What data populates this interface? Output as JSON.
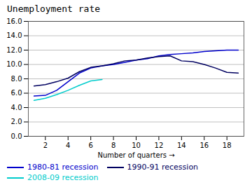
{
  "chart_data": {
    "type": "line",
    "title": "Unemployment rate",
    "xlabel": "Number of quarters",
    "x": [
      1,
      2,
      3,
      4,
      5,
      6,
      7,
      8,
      9,
      10,
      11,
      12,
      13,
      14,
      15,
      16,
      17,
      18,
      19
    ],
    "series": [
      {
        "name": "1980-81 recession",
        "color": "#0000cc",
        "values": [
          5.6,
          5.7,
          6.4,
          7.6,
          8.8,
          9.5,
          9.8,
          10.0,
          10.3,
          10.6,
          10.8,
          11.2,
          11.4,
          11.5,
          11.6,
          11.8,
          11.9,
          12.0,
          12.0
        ]
      },
      {
        "name": "1990-91 recession",
        "color": "#000060",
        "values": [
          7.0,
          7.2,
          7.6,
          8.1,
          9.0,
          9.6,
          9.8,
          10.1,
          10.5,
          10.6,
          10.9,
          11.1,
          11.2,
          10.5,
          10.4,
          10.0,
          9.5,
          8.9,
          8.8
        ]
      },
      {
        "name": "2008-09 recession",
        "color": "#00cccc",
        "values": [
          5.0,
          5.3,
          5.8,
          6.4,
          7.1,
          7.7,
          7.9,
          null,
          null,
          null,
          null,
          null,
          null,
          null,
          null,
          null,
          null,
          null,
          null
        ]
      }
    ],
    "xlim": [
      0.5,
      19.5
    ],
    "xticks": [
      2,
      4,
      6,
      8,
      10,
      12,
      14,
      16,
      18
    ],
    "ylim": [
      0,
      16.0
    ],
    "yticks": [
      {
        "value": 0,
        "label": "0.0"
      },
      {
        "value": 2,
        "label": "2.0"
      },
      {
        "value": 4,
        "label": "4.0"
      },
      {
        "value": 6,
        "label": "6.0"
      },
      {
        "value": 8,
        "label": "8.0"
      },
      {
        "value": 10,
        "label": "10.0"
      },
      {
        "value": 12,
        "label": "12.0"
      },
      {
        "value": 14,
        "label": "14.0"
      },
      {
        "value": 16,
        "label": "16.0"
      }
    ],
    "grid": true,
    "legend": "bottom"
  }
}
